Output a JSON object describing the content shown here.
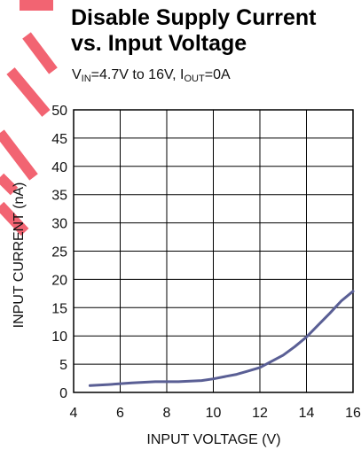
{
  "chart_data": {
    "type": "line",
    "title": "Disable Supply Current",
    "title_line2": "vs. Input Voltage",
    "subtitle": {
      "v_in_main": "V",
      "v_in_sub": "IN",
      "v_in_rest": "=4.7V to 16V, I",
      "i_out_sub": "OUT",
      "i_out_rest": "=0A"
    },
    "xlabel": "INPUT VOLTAGE (V)",
    "ylabel": "INPUT CURRENT (nA)",
    "xlim": [
      4,
      16
    ],
    "ylim": [
      0,
      50
    ],
    "x_ticks": [
      4,
      6,
      8,
      10,
      12,
      14,
      16
    ],
    "y_ticks": [
      0,
      5,
      10,
      15,
      20,
      25,
      30,
      35,
      40,
      45,
      50
    ],
    "grid": true,
    "series_color": "#5a5f95",
    "watermark_color": "#f04a5a",
    "series": [
      {
        "x": [
          4.7,
          5.5,
          6.5,
          7.5,
          8.5,
          9.5,
          10.0,
          10.5,
          11.0,
          11.5,
          12.0,
          12.5,
          13.0,
          13.5,
          14.0,
          14.5,
          15.0,
          15.5,
          16.0
        ],
        "values": [
          1.2,
          1.4,
          1.7,
          1.9,
          1.9,
          2.1,
          2.4,
          2.8,
          3.2,
          3.8,
          4.4,
          5.5,
          6.6,
          8.1,
          9.8,
          11.9,
          14.0,
          16.2,
          17.9
        ]
      }
    ]
  }
}
